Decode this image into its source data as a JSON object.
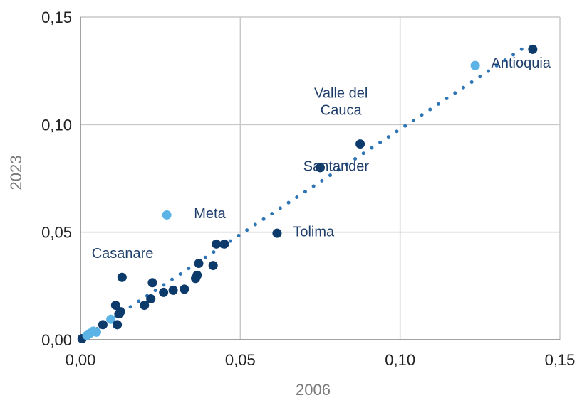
{
  "chart_data": {
    "type": "scatter",
    "xlabel": "2006",
    "ylabel": "2023",
    "xlim": [
      0,
      0.15
    ],
    "ylim": [
      0,
      0.15
    ],
    "x_ticks": [
      "0,00",
      "0,05",
      "0,10",
      "0,15"
    ],
    "y_ticks": [
      "0,00",
      "0,05",
      "0,10",
      "0,15"
    ],
    "grid": true,
    "colors": {
      "dark": "#0b3a6b",
      "light": "#5bb3e6",
      "trend": "#2e75b6",
      "grid": "#c8c8c8"
    },
    "series": [
      {
        "points": [
          {
            "x": 0.0005,
            "y": 0.0005,
            "tone": "dark"
          },
          {
            "x": 0.002,
            "y": 0.002,
            "tone": "light"
          },
          {
            "x": 0.003,
            "y": 0.003,
            "tone": "light"
          },
          {
            "x": 0.004,
            "y": 0.004,
            "tone": "light"
          },
          {
            "x": 0.005,
            "y": 0.0035,
            "tone": "light"
          },
          {
            "x": 0.007,
            "y": 0.007,
            "tone": "dark"
          },
          {
            "x": 0.0095,
            "y": 0.0095,
            "tone": "light"
          },
          {
            "x": 0.011,
            "y": 0.016,
            "tone": "dark"
          },
          {
            "x": 0.0115,
            "y": 0.007,
            "tone": "dark"
          },
          {
            "x": 0.012,
            "y": 0.012,
            "tone": "dark"
          },
          {
            "x": 0.0125,
            "y": 0.013,
            "tone": "dark"
          },
          {
            "x": 0.013,
            "y": 0.029,
            "tone": "dark"
          },
          {
            "x": 0.02,
            "y": 0.016,
            "tone": "dark"
          },
          {
            "x": 0.022,
            "y": 0.019,
            "tone": "dark"
          },
          {
            "x": 0.0225,
            "y": 0.0265,
            "tone": "dark"
          },
          {
            "x": 0.026,
            "y": 0.022,
            "tone": "dark"
          },
          {
            "x": 0.027,
            "y": 0.058,
            "tone": "light"
          },
          {
            "x": 0.029,
            "y": 0.023,
            "tone": "dark"
          },
          {
            "x": 0.0325,
            "y": 0.0235,
            "tone": "dark"
          },
          {
            "x": 0.036,
            "y": 0.0285,
            "tone": "dark"
          },
          {
            "x": 0.0365,
            "y": 0.03,
            "tone": "dark"
          },
          {
            "x": 0.037,
            "y": 0.0355,
            "tone": "dark"
          },
          {
            "x": 0.0415,
            "y": 0.0345,
            "tone": "dark"
          },
          {
            "x": 0.0425,
            "y": 0.0445,
            "tone": "dark"
          },
          {
            "x": 0.045,
            "y": 0.0445,
            "tone": "dark"
          },
          {
            "x": 0.0615,
            "y": 0.0495,
            "tone": "dark"
          },
          {
            "x": 0.075,
            "y": 0.08,
            "tone": "dark"
          },
          {
            "x": 0.0875,
            "y": 0.091,
            "tone": "dark"
          },
          {
            "x": 0.1235,
            "y": 0.1275,
            "tone": "light"
          },
          {
            "x": 0.1415,
            "y": 0.135,
            "tone": "dark"
          }
        ]
      }
    ],
    "trendline": {
      "style": "dotted",
      "x": [
        0,
        0.14
      ],
      "y": [
        0,
        0.137
      ]
    },
    "annotations": [
      {
        "text": "Antioquia",
        "x": 0.1285,
        "y": 0.1265,
        "anchor": "start"
      },
      {
        "text": "Valle del",
        "x": 0.0815,
        "y": 0.1125,
        "anchor": "middle"
      },
      {
        "text": "Cauca",
        "x": 0.0815,
        "y": 0.1045,
        "anchor": "middle"
      },
      {
        "text": "Santander",
        "x": 0.08,
        "y": 0.0785,
        "anchor": "middle"
      },
      {
        "text": "Meta",
        "x": 0.0355,
        "y": 0.0565,
        "anchor": "start"
      },
      {
        "text": "Tolima",
        "x": 0.0665,
        "y": 0.048,
        "anchor": "start"
      },
      {
        "text": "Casanare",
        "x": 0.0035,
        "y": 0.038,
        "anchor": "start"
      }
    ]
  }
}
